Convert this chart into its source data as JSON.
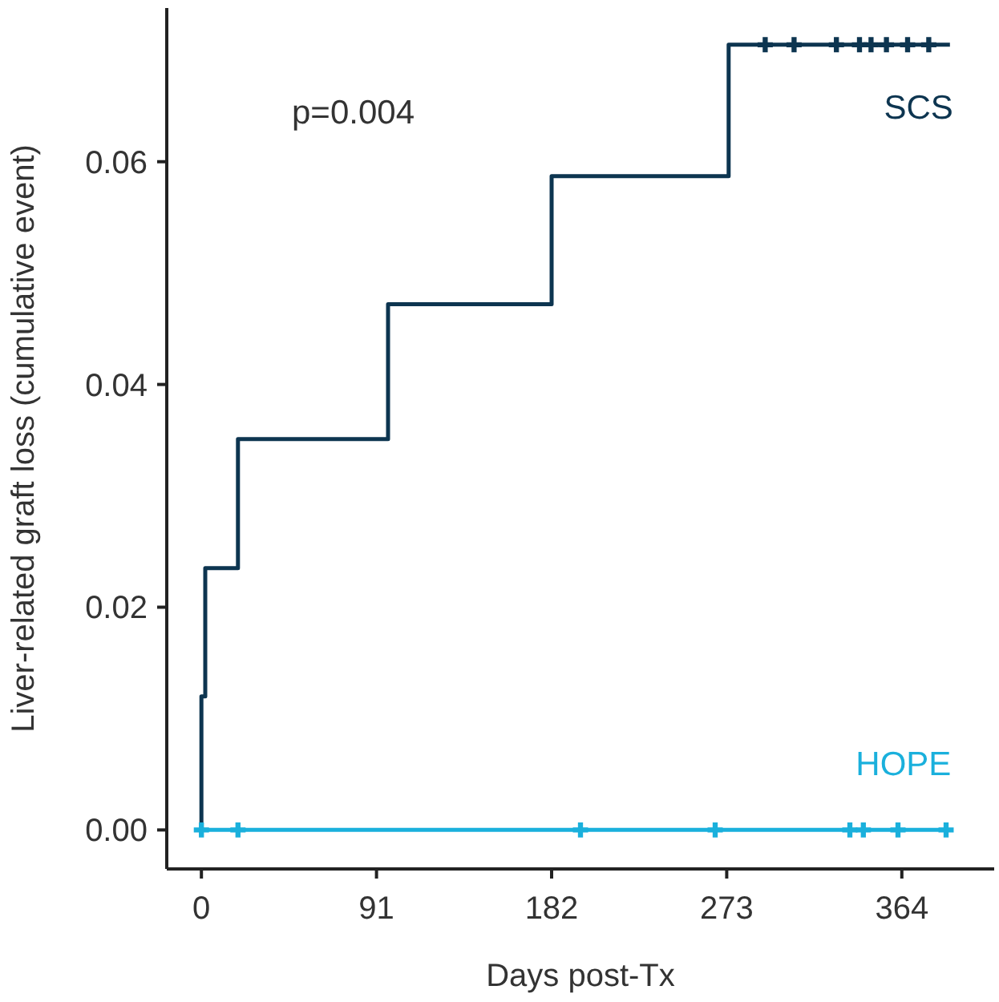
{
  "chart_data": {
    "type": "step",
    "xlabel": "Days post-Tx",
    "ylabel": "Liver-related graft loss (cumulative event)",
    "annotations": [
      "p=0.004"
    ],
    "xlim": [
      -18,
      412
    ],
    "ylim": [
      -0.0035,
      0.0738
    ],
    "xticks": [
      0,
      91,
      182,
      273,
      364
    ],
    "yticks": [
      {
        "value": 0,
        "label": "0.00"
      },
      {
        "value": 0.02,
        "label": "0.02"
      },
      {
        "value": 0.04,
        "label": "0.04"
      },
      {
        "value": 0.06,
        "label": "0.06"
      }
    ],
    "grid": false,
    "series": [
      {
        "name": "SCS",
        "color": "#0d3550",
        "x": [
          0,
          0,
          2,
          19,
          97,
          182,
          274,
          389
        ],
        "values": [
          0,
          0.012,
          0.0235,
          0.0351,
          0.0472,
          0.0587,
          0.0705,
          0.0705
        ]
      },
      {
        "name": "HOPE",
        "color": "#1ab0dc",
        "x": [
          0,
          388
        ],
        "values": [
          0,
          0
        ]
      },
      {
        "type": "scatter",
        "marker": "cross",
        "color": "#0d3550",
        "x": [
          293,
          308,
          330,
          342,
          348,
          356,
          367,
          378
        ],
        "values": [
          0.0705,
          0.0705,
          0.0705,
          0.0705,
          0.0705,
          0.0705,
          0.0705,
          0.0705
        ]
      },
      {
        "type": "scatter",
        "marker": "cross",
        "color": "#1ab0dc",
        "x": [
          0,
          19,
          197,
          267,
          337,
          344,
          362,
          387
        ],
        "values": [
          0,
          0,
          0,
          0,
          0,
          0,
          0,
          0
        ]
      }
    ]
  }
}
